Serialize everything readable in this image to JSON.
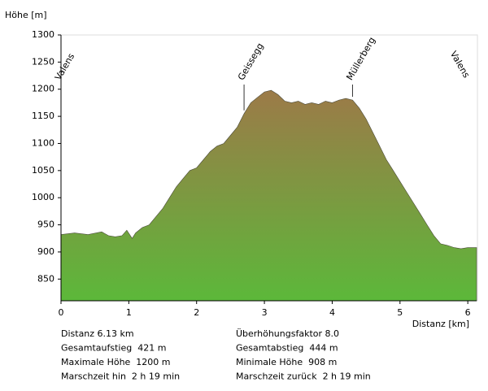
{
  "chart_data": {
    "type": "area",
    "ylabel": "Höhe [m]",
    "xlabel": "Distanz [km]",
    "x": [
      0,
      0.2,
      0.4,
      0.6,
      0.7,
      0.8,
      0.9,
      0.97,
      1.05,
      1.1,
      1.2,
      1.3,
      1.4,
      1.5,
      1.6,
      1.7,
      1.8,
      1.9,
      2.0,
      2.1,
      2.2,
      2.3,
      2.4,
      2.5,
      2.6,
      2.7,
      2.8,
      2.9,
      3.0,
      3.1,
      3.2,
      3.3,
      3.4,
      3.5,
      3.6,
      3.7,
      3.8,
      3.9,
      4.0,
      4.1,
      4.2,
      4.3,
      4.4,
      4.5,
      4.6,
      4.7,
      4.8,
      4.9,
      5.0,
      5.1,
      5.2,
      5.3,
      5.4,
      5.5,
      5.6,
      5.7,
      5.8,
      5.9,
      6.0,
      6.13
    ],
    "values": [
      932,
      935,
      932,
      937,
      930,
      928,
      930,
      940,
      925,
      935,
      945,
      950,
      965,
      980,
      1000,
      1020,
      1035,
      1050,
      1055,
      1070,
      1085,
      1095,
      1100,
      1115,
      1130,
      1155,
      1175,
      1185,
      1195,
      1198,
      1190,
      1178,
      1175,
      1178,
      1172,
      1175,
      1172,
      1178,
      1175,
      1180,
      1183,
      1180,
      1165,
      1145,
      1120,
      1095,
      1070,
      1050,
      1030,
      1010,
      990,
      970,
      950,
      930,
      915,
      912,
      908,
      906,
      908,
      908
    ],
    "gradient": [
      "#9c7a48",
      "#5cb83a"
    ],
    "xlim": [
      0,
      6.13
    ],
    "ylim": [
      810,
      1300
    ],
    "xticks": [
      0,
      1,
      2,
      3,
      4,
      5,
      6
    ],
    "yticks": [
      850,
      900,
      950,
      1000,
      1050,
      1100,
      1150,
      1200,
      1250,
      1300
    ],
    "waypoints": [
      {
        "label": "Valens",
        "x": 0,
        "y": 932
      },
      {
        "label": "Geissegg",
        "x": 2.7,
        "y": 1155
      },
      {
        "label": "Müllerberg",
        "x": 4.3,
        "y": 1180
      },
      {
        "label": "Valens",
        "x": 6.13,
        "y": 908
      }
    ],
    "stats_left": [
      "Distanz 6.13 km",
      "Gesamtaufstieg  421 m",
      "Maximale Höhe  1200 m",
      "Marschzeit hin  2 h 19 min"
    ],
    "stats_right": [
      "Überhöhungsfaktor 8.0",
      "Gesamtabstieg  444 m",
      "Minimale Höhe  908 m",
      "Marschzeit zurück  2 h 19 min"
    ]
  }
}
